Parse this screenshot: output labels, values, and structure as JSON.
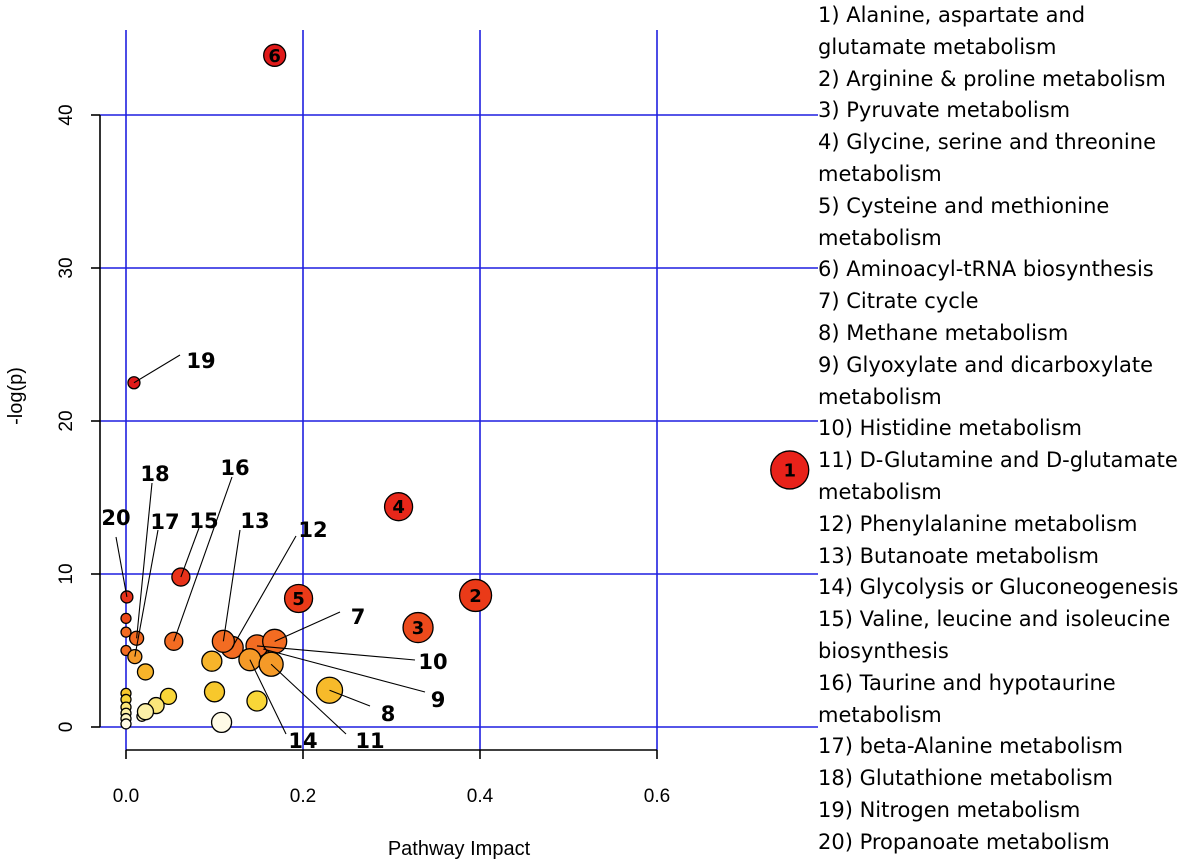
{
  "chart_data": {
    "type": "scatter",
    "title": "",
    "xlabel": "Pathway Impact",
    "ylabel": "-log(p)",
    "xlim": [
      -0.03,
      0.75
    ],
    "ylim": [
      -1.5,
      46
    ],
    "xticks": [
      0.0,
      0.2,
      0.4,
      0.6
    ],
    "xtick_labels": [
      "0.0",
      "0.2",
      "0.4",
      "0.6"
    ],
    "yticks": [
      0,
      10,
      20,
      30,
      40
    ],
    "ytick_labels": [
      "0",
      "10",
      "20",
      "30",
      "40"
    ],
    "grid": true,
    "grid_color": "#1f1fe0",
    "label_color": "#000000",
    "points": [
      {
        "x": 0.75,
        "y": 16.8,
        "label": "1",
        "color": "#e8221a"
      },
      {
        "x": 0.395,
        "y": 8.6,
        "label": "2",
        "color": "#ea3a18"
      },
      {
        "x": 0.33,
        "y": 6.5,
        "label": "3",
        "color": "#ec4a1c"
      },
      {
        "x": 0.308,
        "y": 14.4,
        "label": "4",
        "color": "#e8271a"
      },
      {
        "x": 0.195,
        "y": 8.4,
        "label": "5",
        "color": "#ea3a18"
      },
      {
        "x": 0.168,
        "y": 43.9,
        "label": "6",
        "color": "#e01a1a"
      },
      {
        "x": 0.168,
        "y": 5.6,
        "label": "7",
        "color": "#f36c22"
      },
      {
        "x": 0.23,
        "y": 2.4,
        "label": "8",
        "color": "#f7ba2a"
      },
      {
        "x": 0.155,
        "y": 5.1,
        "label": "9",
        "color": "#f36c22"
      },
      {
        "x": 0.148,
        "y": 5.3,
        "label": "10",
        "color": "#f36c22"
      },
      {
        "x": 0.164,
        "y": 4.1,
        "label": "11",
        "color": "#f59a28"
      },
      {
        "x": 0.12,
        "y": 5.2,
        "label": "12",
        "color": "#f36c22"
      },
      {
        "x": 0.11,
        "y": 5.6,
        "label": "13",
        "color": "#f36c22"
      },
      {
        "x": 0.14,
        "y": 4.4,
        "label": "14",
        "color": "#f59a28"
      },
      {
        "x": 0.062,
        "y": 9.8,
        "label": "15",
        "color": "#e8321a"
      },
      {
        "x": 0.054,
        "y": 5.6,
        "label": "16",
        "color": "#f36c22"
      },
      {
        "x": 0.01,
        "y": 4.6,
        "label": "17",
        "color": "#f59a28"
      },
      {
        "x": 0.012,
        "y": 5.8,
        "label": "18",
        "color": "#f36c22"
      },
      {
        "x": 0.009,
        "y": 22.5,
        "label": "19",
        "color": "#e01a1a"
      },
      {
        "x": 0.001,
        "y": 8.5,
        "label": "20",
        "color": "#e8321a"
      },
      {
        "x": 0.0,
        "y": 7.1,
        "label": "",
        "color": "#ec4a1c"
      },
      {
        "x": 0.0,
        "y": 6.2,
        "label": "",
        "color": "#f36c22"
      },
      {
        "x": 0.0,
        "y": 5.0,
        "label": "",
        "color": "#f36c22"
      },
      {
        "x": 0.022,
        "y": 3.6,
        "label": "",
        "color": "#f7b42a"
      },
      {
        "x": 0.097,
        "y": 4.3,
        "label": "",
        "color": "#f7b42a"
      },
      {
        "x": 0.1,
        "y": 2.3,
        "label": "",
        "color": "#f7c82c"
      },
      {
        "x": 0.148,
        "y": 1.7,
        "label": "",
        "color": "#f9d638"
      },
      {
        "x": 0.048,
        "y": 2.0,
        "label": "",
        "color": "#f9d638"
      },
      {
        "x": 0.034,
        "y": 1.4,
        "label": "",
        "color": "#fbe67a"
      },
      {
        "x": 0.022,
        "y": 1.0,
        "label": "",
        "color": "#fcf0a6"
      },
      {
        "x": 0.018,
        "y": 0.7,
        "label": "",
        "color": "#fdf5c4"
      },
      {
        "x": 0.108,
        "y": 0.3,
        "label": "",
        "color": "#fffbe6"
      },
      {
        "x": 0.0,
        "y": 2.2,
        "label": "",
        "color": "#f7c82c"
      },
      {
        "x": 0.0,
        "y": 1.8,
        "label": "",
        "color": "#f9d638"
      },
      {
        "x": 0.0,
        "y": 1.3,
        "label": "",
        "color": "#fbe67a"
      },
      {
        "x": 0.0,
        "y": 0.9,
        "label": "",
        "color": "#fcf0a6"
      },
      {
        "x": 0.0,
        "y": 0.55,
        "label": "",
        "color": "#fdf5c4"
      },
      {
        "x": 0.0,
        "y": 0.2,
        "label": "",
        "color": "#fffbe6"
      }
    ],
    "legend": [
      "1) Alanine, aspartate and",
      "glutamate metabolism",
      "2) Arginine & proline metabolism",
      "3) Pyruvate metabolism",
      "4) Glycine, serine and threonine",
      "metabolism",
      "5) Cysteine and methionine",
      "metabolism",
      "6) Aminoacyl-tRNA biosynthesis",
      "7) Citrate cycle",
      "8) Methane metabolism",
      "9) Glyoxylate and dicarboxylate",
      "metabolism",
      "10) Histidine metabolism",
      "11) D-Glutamine and D-glutamate",
      "metabolism",
      "12) Phenylalanine metabolism",
      "13) Butanoate metabolism",
      "14) Glycolysis or Gluconeogenesis",
      "15) Valine, leucine and isoleucine",
      "biosynthesis",
      "16) Taurine and hypotaurine",
      "metabolism",
      "17) beta-Alanine metabolism",
      "18) Glutathione metabolism",
      "19) Nitrogen metabolism",
      "20) Propanoate metabolism"
    ]
  }
}
